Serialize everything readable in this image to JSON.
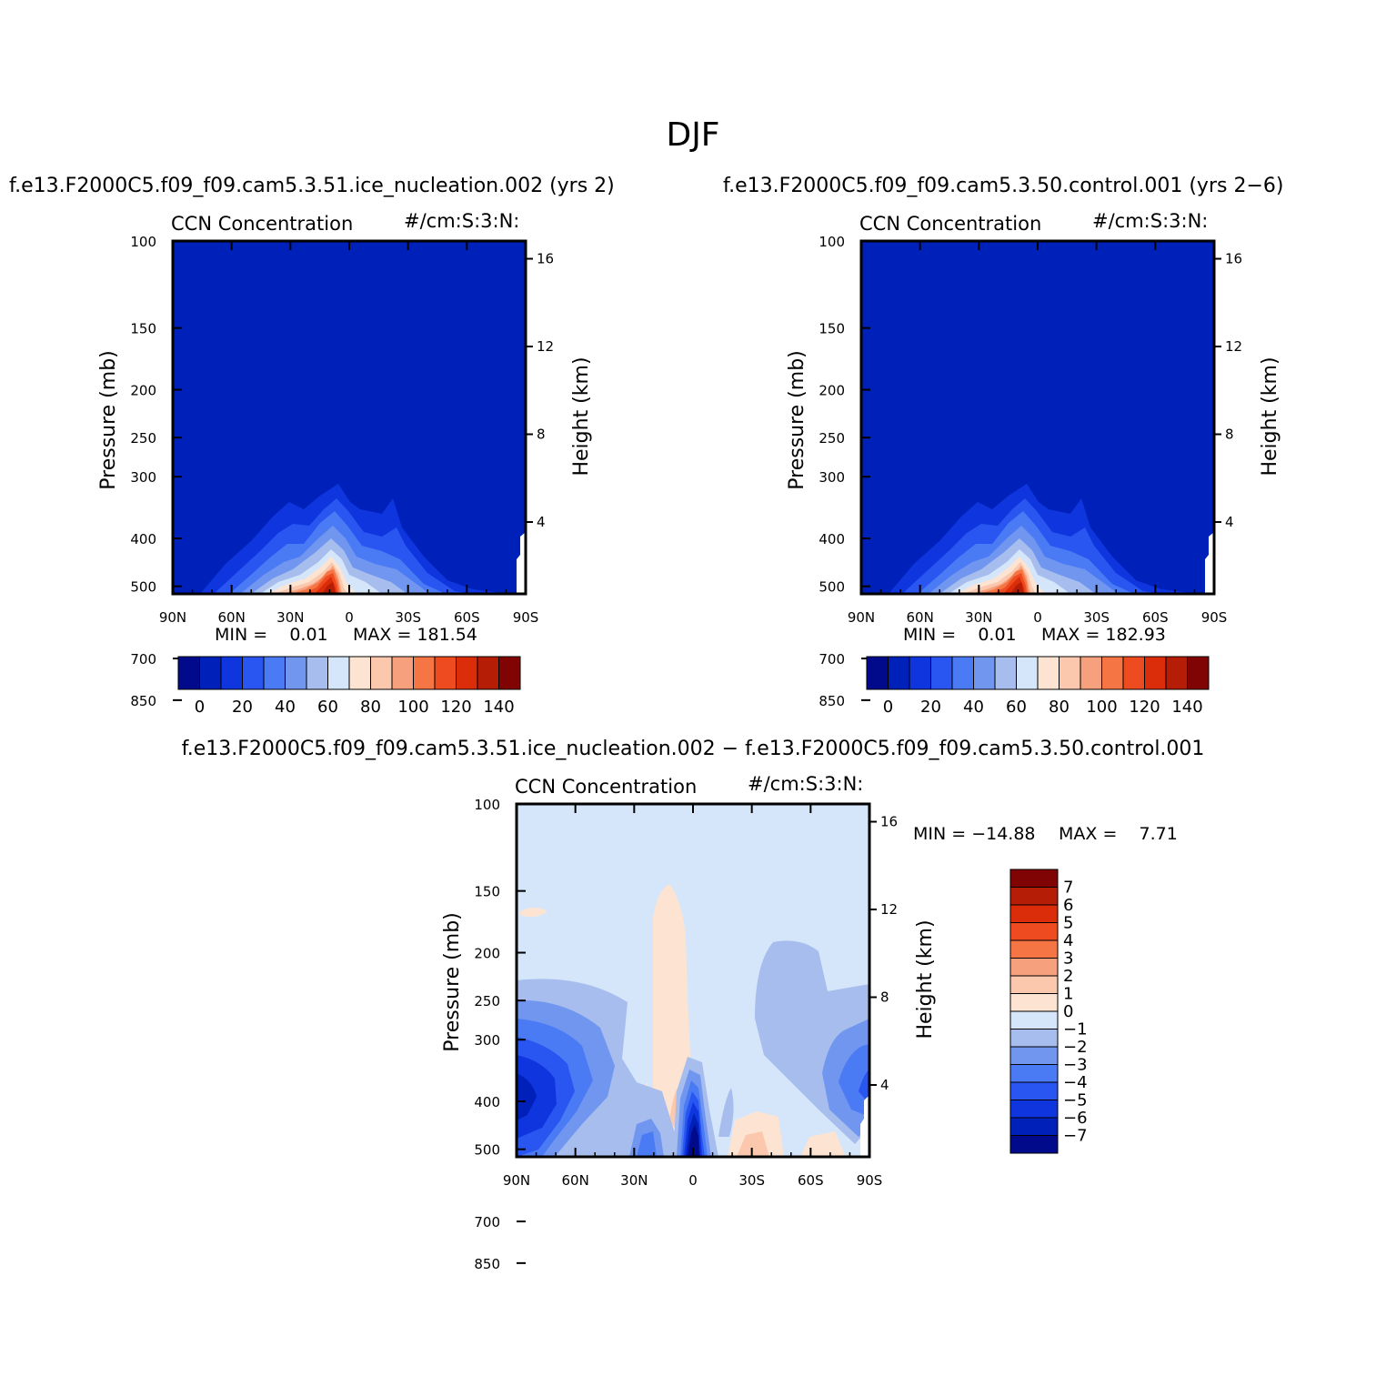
{
  "page": {
    "title": "DJF",
    "left_case": "f.e13.F2000C5.f09_f09.cam5.3.51.ice_nucleation.002 (yrs 2)",
    "right_case": "f.e13.F2000C5.f09_f09.cam5.3.50.control.001 (yrs 2−6)",
    "diff_title": "f.e13.F2000C5.f09_f09.cam5.3.51.ice_nucleation.002 − f.e13.F2000C5.f09_f09.cam5.3.50.control.001"
  },
  "chart_data": [
    {
      "type": "heatmap",
      "subtitle_left": "CCN Concentration",
      "subtitle_right": "#/cm:S:3:N:",
      "ylabel": "Pressure (mb)",
      "ylabel_right": "Height (km)",
      "x_ticks": [
        "90N",
        "60N",
        "30N",
        "0",
        "30S",
        "60S",
        "90S"
      ],
      "y_ticks": [
        "100",
        "150",
        "200",
        "250",
        "300",
        "400",
        "500",
        "700",
        "850"
      ],
      "y_right_ticks": [
        "16",
        "12",
        "8",
        "4"
      ],
      "min_text": "MIN =    0.01",
      "max_text": "MAX = 181.54",
      "min": 0.01,
      "max": 181.54,
      "colorbar_labels": [
        "0",
        "20",
        "40",
        "60",
        "80",
        "100",
        "120",
        "140"
      ],
      "colors": [
        "#000a8b",
        "#0021b9",
        "#0f35de",
        "#2955f0",
        "#4a7af4",
        "#7096f0",
        "#a6bdee",
        "#d5e6fa",
        "#fde4d2",
        "#fbc7ad",
        "#f7a07e",
        "#f57545",
        "#ef4b21",
        "#db2d09",
        "#b51d06",
        "#800404"
      ]
    },
    {
      "type": "heatmap",
      "subtitle_left": "CCN Concentration",
      "subtitle_right": "#/cm:S:3:N:",
      "ylabel": "Pressure (mb)",
      "ylabel_right": "Height (km)",
      "x_ticks": [
        "90N",
        "60N",
        "30N",
        "0",
        "30S",
        "60S",
        "90S"
      ],
      "y_ticks": [
        "100",
        "150",
        "200",
        "250",
        "300",
        "400",
        "500",
        "700",
        "850"
      ],
      "y_right_ticks": [
        "16",
        "12",
        "8",
        "4"
      ],
      "min_text": "MIN =    0.01",
      "max_text": "MAX = 182.93",
      "min": 0.01,
      "max": 182.93,
      "colorbar_labels": [
        "0",
        "20",
        "40",
        "60",
        "80",
        "100",
        "120",
        "140"
      ]
    },
    {
      "type": "heatmap",
      "subtitle_left": "CCN Concentration",
      "subtitle_right": "#/cm:S:3:N:",
      "ylabel": "Pressure (mb)",
      "ylabel_right": "Height (km)",
      "x_ticks": [
        "90N",
        "60N",
        "30N",
        "0",
        "30S",
        "60S",
        "90S"
      ],
      "y_ticks": [
        "100",
        "150",
        "200",
        "250",
        "300",
        "400",
        "500",
        "700",
        "850"
      ],
      "y_right_ticks": [
        "16",
        "12",
        "8",
        "4"
      ],
      "min_text": "MIN = −14.88",
      "max_text": "MAX =    7.71",
      "min": -14.88,
      "max": 7.71,
      "colorbar_labels": [
        "7",
        "6",
        "5",
        "4",
        "3",
        "2",
        "1",
        "0",
        "−1",
        "−2",
        "−3",
        "−4",
        "−5",
        "−6",
        "−7"
      ],
      "colors": [
        "#800404",
        "#b51d06",
        "#db2d09",
        "#ef4b21",
        "#f57545",
        "#f7a07e",
        "#fbc7ad",
        "#fde4d2",
        "#d5e6fa",
        "#a6bdee",
        "#7096f0",
        "#4a7af4",
        "#2955f0",
        "#0f35de",
        "#0021b9",
        "#000a8b"
      ]
    }
  ]
}
